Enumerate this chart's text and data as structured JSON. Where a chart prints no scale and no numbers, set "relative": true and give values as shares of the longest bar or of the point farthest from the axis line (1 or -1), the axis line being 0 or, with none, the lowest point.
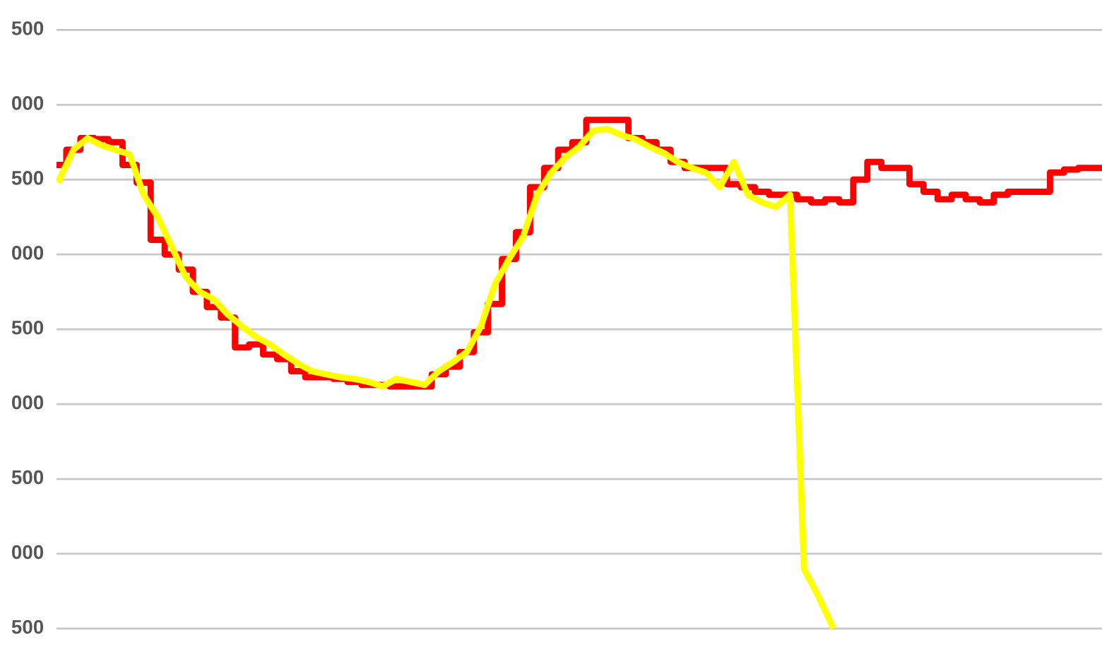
{
  "chart_data": {
    "type": "line",
    "relative": true,
    "categories": [
      null,
      null,
      null,
      null,
      null,
      null,
      null,
      null,
      null,
      null,
      null,
      null,
      null,
      null,
      null,
      null,
      null,
      null,
      null,
      null,
      null,
      null,
      null,
      null,
      null,
      null,
      null,
      null,
      null,
      null,
      null,
      null,
      null,
      null,
      null,
      null,
      null,
      null,
      null,
      null,
      null,
      null,
      null,
      null,
      null,
      null,
      null,
      null,
      null,
      null,
      null,
      null,
      null,
      null,
      null,
      null,
      null,
      null,
      null,
      null,
      null,
      null,
      null,
      null,
      null,
      null,
      null,
      null,
      null,
      null,
      null,
      null,
      null,
      null,
      null
    ],
    "series": [
      {
        "type": "step",
        "color": "#ff0000",
        "values": [
          0.911,
          0.941,
          0.964,
          0.962,
          0.956,
          0.911,
          0.876,
          0.763,
          0.734,
          0.704,
          0.66,
          0.63,
          0.609,
          0.55,
          0.556,
          0.536,
          0.527,
          0.503,
          0.491,
          0.491,
          0.488,
          0.482,
          0.476,
          0.476,
          0.473,
          0.473,
          0.473,
          0.497,
          0.512,
          0.541,
          0.58,
          0.636,
          0.725,
          0.778,
          0.867,
          0.905,
          0.941,
          0.956,
          1.0,
          1.0,
          1.0,
          0.964,
          0.956,
          0.941,
          0.917,
          0.905,
          0.905,
          0.905,
          0.873,
          0.867,
          0.858,
          0.852,
          0.852,
          0.843,
          0.837,
          0.843,
          0.837,
          0.882,
          0.917,
          0.905,
          0.905,
          0.873,
          0.858,
          0.843,
          0.852,
          0.843,
          0.837,
          0.852,
          0.858,
          0.858,
          0.858,
          0.896,
          0.902,
          0.905,
          0.905
        ]
      },
      {
        "color": "#ffff00",
        "values": [
          0.882,
          0.941,
          0.964,
          0.95,
          0.941,
          0.932,
          0.852,
          0.808,
          0.749,
          0.689,
          0.66,
          0.645,
          0.615,
          0.592,
          0.571,
          0.556,
          0.536,
          0.518,
          0.503,
          0.497,
          0.491,
          0.488,
          0.482,
          0.473,
          0.488,
          0.482,
          0.476,
          0.503,
          0.521,
          0.541,
          0.592,
          0.675,
          0.725,
          0.769,
          0.852,
          0.896,
          0.926,
          0.947,
          0.979,
          0.982,
          0.97,
          0.962,
          0.947,
          0.935,
          0.917,
          0.905,
          0.896,
          0.867,
          0.917,
          0.852,
          0.837,
          0.828,
          0.852,
          0.112,
          0.059,
          0.0,
          null,
          null,
          null,
          null,
          null,
          null,
          null,
          null,
          null,
          null,
          null,
          null,
          null,
          null,
          null,
          null,
          null,
          null,
          null
        ]
      }
    ],
    "annotations": [
      "500",
      "000",
      "500",
      "000",
      "500",
      "000",
      "500",
      "000",
      "500"
    ],
    "grid": "y",
    "legend": false,
    "marker": "none",
    "line_style": "solid"
  }
}
